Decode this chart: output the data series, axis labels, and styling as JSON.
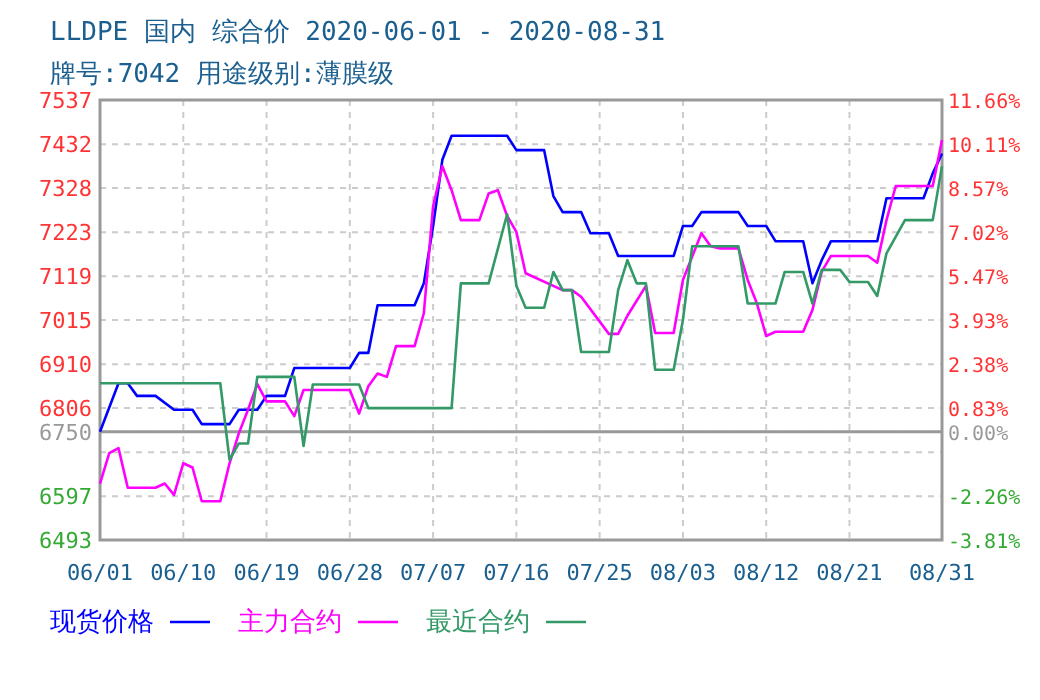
{
  "chart_data": {
    "type": "line",
    "title": "LLDPE 国内 综合价 2020-06-01 - 2020-08-31",
    "subtitle": "牌号:7042 用途级别:薄膜级",
    "xlim": [
      "2020-06-01",
      "2020-08-31"
    ],
    "xticks": [
      {
        "value": "2020-06-01",
        "label": "06/01"
      },
      {
        "value": "2020-06-10",
        "label": "06/10"
      },
      {
        "value": "2020-06-19",
        "label": "06/19"
      },
      {
        "value": "2020-06-28",
        "label": "06/28"
      },
      {
        "value": "2020-07-07",
        "label": "07/07"
      },
      {
        "value": "2020-07-16",
        "label": "07/16"
      },
      {
        "value": "2020-07-25",
        "label": "07/25"
      },
      {
        "value": "2020-08-03",
        "label": "08/03"
      },
      {
        "value": "2020-08-12",
        "label": "08/12"
      },
      {
        "value": "2020-08-21",
        "label": "08/21"
      },
      {
        "value": "2020-08-31",
        "label": "08/31"
      }
    ],
    "ylim": [
      6493,
      7537
    ],
    "yticks": [
      7537,
      7432,
      7328,
      7223,
      7119,
      7015,
      6910,
      6806,
      6750,
      {
        "value": 6701,
        "label": null
      },
      6597,
      6493
    ],
    "y2lim": [
      -3.81,
      11.66
    ],
    "y2ticks": [
      {
        "value": 11.66,
        "label": "11.66%"
      },
      {
        "value": 10.11,
        "label": "10.11%"
      },
      {
        "value": 8.57,
        "label": "8.57%"
      },
      {
        "value": 7.02,
        "label": "7.02%"
      },
      {
        "value": 5.47,
        "label": "5.47%"
      },
      {
        "value": 3.93,
        "label": "3.93%"
      },
      {
        "value": 2.38,
        "label": "2.38%"
      },
      {
        "value": 0.83,
        "label": "0.83%"
      },
      {
        "value": 0,
        "label": "0.00%"
      },
      {
        "value": -2.26,
        "label": "-2.26%"
      },
      {
        "value": -3.81,
        "label": "-3.81%"
      }
    ],
    "ref_lines": [
      {
        "axis": "y",
        "value": 6750,
        "color": "#999999"
      }
    ],
    "grid": true,
    "legend": "bottom",
    "line_style": "solid",
    "series": [
      {
        "name": "现货价格",
        "color": "#0000ff",
        "x": [
          "2020-06-01",
          "2020-06-03",
          "2020-06-04",
          "2020-06-05",
          "2020-06-07",
          "2020-06-09",
          "2020-06-11",
          "2020-06-12",
          "2020-06-15",
          "2020-06-16",
          "2020-06-18",
          "2020-06-19",
          "2020-06-21",
          "2020-06-22",
          "2020-06-28",
          "2020-06-29",
          "2020-06-30",
          "2020-07-01",
          "2020-07-05",
          "2020-07-06",
          "2020-07-07",
          "2020-07-08",
          "2020-07-09",
          "2020-07-15",
          "2020-07-16",
          "2020-07-19",
          "2020-07-20",
          "2020-07-21",
          "2020-07-23",
          "2020-07-24",
          "2020-07-26",
          "2020-07-27",
          "2020-08-02",
          "2020-08-03",
          "2020-08-04",
          "2020-08-05",
          "2020-08-09",
          "2020-08-10",
          "2020-08-12",
          "2020-08-13",
          "2020-08-16",
          "2020-08-17",
          "2020-08-18",
          "2020-08-19",
          "2020-08-24",
          "2020-08-25",
          "2020-08-29",
          "2020-08-30",
          "2020-08-31"
        ],
        "values": [
          6750,
          6865,
          6865,
          6835,
          6835,
          6802,
          6802,
          6768,
          6768,
          6802,
          6802,
          6835,
          6835,
          6901,
          6901,
          6937,
          6937,
          7050,
          7050,
          7102,
          7238,
          7395,
          7452,
          7452,
          7418,
          7418,
          7309,
          7271,
          7271,
          7221,
          7221,
          7167,
          7167,
          7238,
          7238,
          7271,
          7271,
          7238,
          7238,
          7202,
          7202,
          7102,
          7157,
          7202,
          7202,
          7304,
          7304,
          7363,
          7410
        ]
      },
      {
        "name": "主力合约",
        "color": "#ff00ff",
        "x": [
          "2020-06-01",
          "2020-06-02",
          "2020-06-03",
          "2020-06-04",
          "2020-06-07",
          "2020-06-08",
          "2020-06-09",
          "2020-06-10",
          "2020-06-11",
          "2020-06-12",
          "2020-06-14",
          "2020-06-15",
          "2020-06-16",
          "2020-06-17",
          "2020-06-18",
          "2020-06-19",
          "2020-06-21",
          "2020-06-22",
          "2020-06-23",
          "2020-06-28",
          "2020-06-29",
          "2020-06-30",
          "2020-07-01",
          "2020-07-02",
          "2020-07-03",
          "2020-07-05",
          "2020-07-06",
          "2020-07-07",
          "2020-07-08",
          "2020-07-09",
          "2020-07-10",
          "2020-07-12",
          "2020-07-13",
          "2020-07-14",
          "2020-07-15",
          "2020-07-16",
          "2020-07-17",
          "2020-07-21",
          "2020-07-22",
          "2020-07-23",
          "2020-07-26",
          "2020-07-27",
          "2020-07-28",
          "2020-07-30",
          "2020-07-31",
          "2020-08-02",
          "2020-08-03",
          "2020-08-05",
          "2020-08-06",
          "2020-08-07",
          "2020-08-09",
          "2020-08-10",
          "2020-08-11",
          "2020-08-12",
          "2020-08-13",
          "2020-08-16",
          "2020-08-17",
          "2020-08-18",
          "2020-08-19",
          "2020-08-23",
          "2020-08-24",
          "2020-08-25",
          "2020-08-26",
          "2020-08-30",
          "2020-08-31"
        ],
        "values": [
          6627,
          6699,
          6711,
          6617,
          6617,
          6627,
          6600,
          6675,
          6665,
          6585,
          6585,
          6675,
          6746,
          6802,
          6863,
          6822,
          6822,
          6787,
          6849,
          6849,
          6793,
          6858,
          6888,
          6880,
          6953,
          6953,
          7031,
          7285,
          7380,
          7323,
          7252,
          7252,
          7315,
          7323,
          7262,
          7224,
          7126,
          7086,
          7086,
          7070,
          6982,
          6982,
          7025,
          7096,
          6984,
          6984,
          7110,
          7221,
          7190,
          7185,
          7185,
          7110,
          7054,
          6977,
          6987,
          6987,
          7039,
          7130,
          7167,
          7167,
          7151,
          7252,
          7333,
          7333,
          7442
        ]
      },
      {
        "name": "最近合约",
        "color": "#339966",
        "x": [
          "2020-06-01",
          "2020-06-14",
          "2020-06-15",
          "2020-06-16",
          "2020-06-17",
          "2020-06-18",
          "2020-06-22",
          "2020-06-23",
          "2020-06-24",
          "2020-06-29",
          "2020-06-30",
          "2020-07-09",
          "2020-07-10",
          "2020-07-13",
          "2020-07-15",
          "2020-07-16",
          "2020-07-17",
          "2020-07-19",
          "2020-07-20",
          "2020-07-21",
          "2020-07-22",
          "2020-07-23",
          "2020-07-26",
          "2020-07-27",
          "2020-07-28",
          "2020-07-29",
          "2020-07-30",
          "2020-07-31",
          "2020-08-02",
          "2020-08-03",
          "2020-08-04",
          "2020-08-09",
          "2020-08-10",
          "2020-08-13",
          "2020-08-14",
          "2020-08-16",
          "2020-08-17",
          "2020-08-18",
          "2020-08-20",
          "2020-08-21",
          "2020-08-23",
          "2020-08-24",
          "2020-08-25",
          "2020-08-27",
          "2020-08-30",
          "2020-08-31"
        ],
        "values": [
          6865,
          6865,
          6683,
          6722,
          6722,
          6880,
          6880,
          6716,
          6862,
          6862,
          6806,
          6806,
          7102,
          7102,
          7266,
          7096,
          7044,
          7044,
          7129,
          7086,
          7086,
          6939,
          6939,
          7086,
          7157,
          7102,
          7102,
          6897,
          6897,
          7015,
          7190,
          7190,
          7054,
          7054,
          7129,
          7129,
          7054,
          7134,
          7134,
          7105,
          7105,
          7072,
          7173,
          7252,
          7252,
          7380
        ]
      }
    ]
  }
}
